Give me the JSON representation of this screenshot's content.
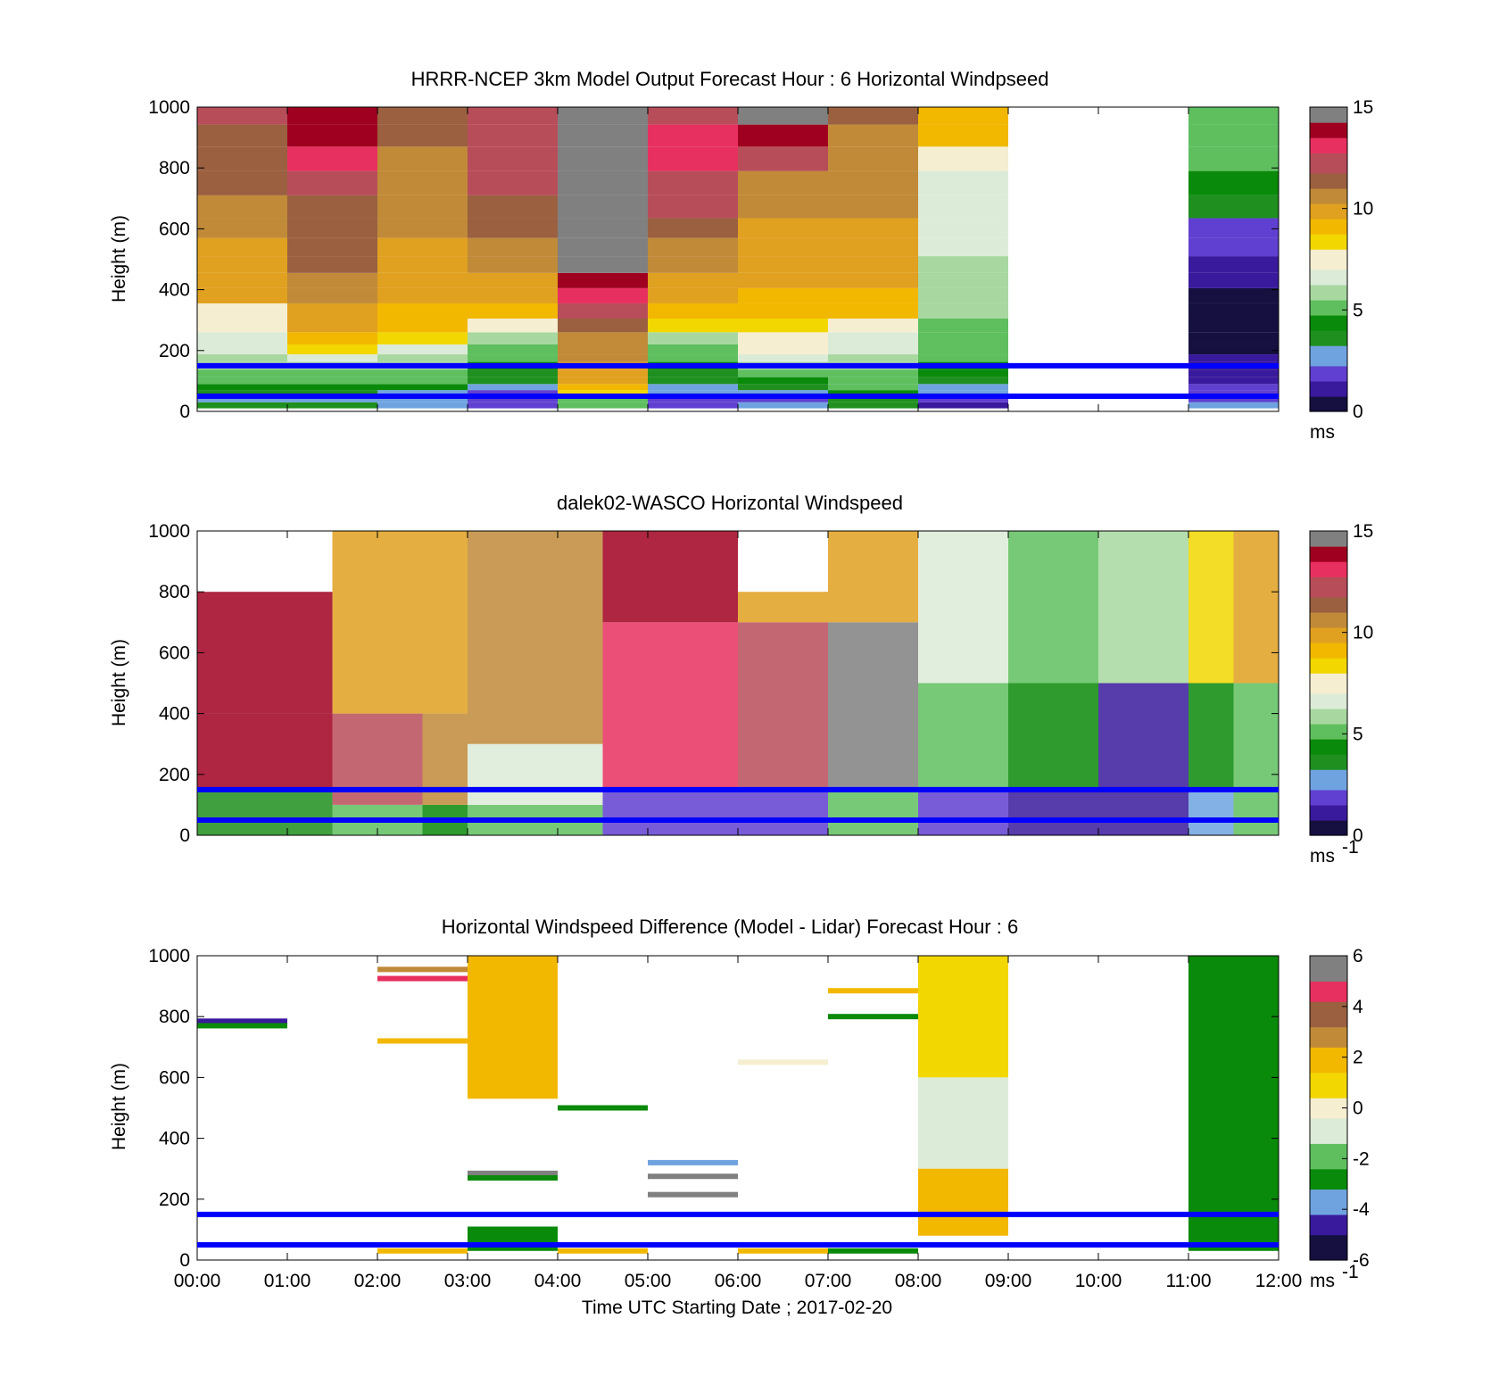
{
  "figure": {
    "xlabel": "Time UTC  Starting Date ; 2017-02-20",
    "ylabel": "Height (m)",
    "x_ticks": [
      "00:00",
      "01:00",
      "02:00",
      "03:00",
      "04:00",
      "05:00",
      "06:00",
      "07:00",
      "08:00",
      "09:00",
      "10:00",
      "11:00",
      "12:00"
    ]
  },
  "colors": {
    "reference_line": "#0000ff",
    "missing": "#ffffff",
    "speed_colormap": [
      "#151040",
      "#3a1a9c",
      "#6040d0",
      "#6fa3e0",
      "#1f8f1f",
      "#0a8a0a",
      "#5fbf5f",
      "#a8d8a0",
      "#dcebd8",
      "#f5eed0",
      "#f2d700",
      "#f2b800",
      "#e0a020",
      "#c08a38",
      "#9a6040",
      "#b84d5a",
      "#e83060",
      "#a00020",
      "#808080"
    ],
    "diff_colormap": [
      "#151040",
      "#3a1a9c",
      "#6fa3e0",
      "#0a8a0a",
      "#5fbf5f",
      "#dcebd8",
      "#f5eed0",
      "#f2d700",
      "#f2b800",
      "#c08a38",
      "#9a6040",
      "#e83060",
      "#808080"
    ]
  },
  "chart_data": [
    {
      "type": "heatmap",
      "title": "HRRR-NCEP 3km Model Output   Forecast Hour : 6 Horizontal Windpseed",
      "xlabel": "",
      "ylabel": "Height (m)",
      "xlim": [
        0,
        12
      ],
      "ylim": [
        0,
        1000
      ],
      "y_ticks": [
        0,
        200,
        400,
        600,
        800,
        1000
      ],
      "colorbar": {
        "min": 0,
        "max": 15,
        "ticks": [
          0,
          5,
          10,
          15
        ],
        "unit": "ms"
      },
      "reference_lines_m": [
        50,
        150
      ],
      "grid": false,
      "columns": [
        {
          "time_start": "00:00",
          "heights_m": [
            20,
            40,
            60,
            80,
            100,
            125,
            150,
            175,
            200,
            240,
            280,
            330,
            380,
            430,
            480,
            540,
            600,
            670,
            750,
            830,
            910,
            975
          ],
          "values": [
            3.2,
            3.0,
            3.6,
            4.4,
            5.0,
            5.2,
            5.6,
            5.8,
            6.5,
            6.8,
            7.2,
            7.8,
            9.5,
            9.8,
            10.0,
            10.2,
            10.6,
            11.0,
            11.5,
            11.6,
            11.8,
            12.0
          ]
        },
        {
          "time_start": "01:00",
          "heights_m": [
            20,
            40,
            60,
            80,
            100,
            125,
            150,
            175,
            200,
            240,
            280,
            330,
            380,
            430,
            480,
            540,
            600,
            670,
            750,
            830,
            910,
            975
          ],
          "values": [
            3.2,
            3.0,
            3.5,
            4.5,
            5.1,
            5.5,
            6.2,
            7.0,
            8.2,
            9.3,
            9.5,
            9.8,
            10.3,
            11.0,
            11.4,
            11.6,
            11.6,
            11.8,
            12.0,
            12.8,
            13.5,
            13.8
          ]
        },
        {
          "time_start": "02:00",
          "heights_m": [
            20,
            40,
            60,
            80,
            100,
            125,
            150,
            175,
            200,
            240,
            280,
            330,
            380,
            430,
            480,
            540,
            600,
            670,
            750,
            830,
            910,
            975
          ],
          "values": [
            2.8,
            2.6,
            3.0,
            4.6,
            5.0,
            5.2,
            5.6,
            6.3,
            7.0,
            8.0,
            9.0,
            9.4,
            9.6,
            9.8,
            10.0,
            10.2,
            10.4,
            10.6,
            10.8,
            11.0,
            11.2,
            11.4
          ]
        },
        {
          "time_start": "03:00",
          "heights_m": [
            20,
            40,
            60,
            80,
            100,
            125,
            150,
            175,
            200,
            240,
            280,
            330,
            380,
            430,
            480,
            540,
            600,
            670,
            750,
            830,
            910,
            975
          ],
          "values": [
            2.0,
            1.8,
            2.2,
            2.6,
            3.2,
            3.8,
            4.6,
            5.0,
            5.2,
            5.8,
            7.4,
            9.0,
            9.5,
            10.0,
            10.6,
            11.0,
            11.4,
            11.8,
            12.0,
            12.1,
            12.2,
            12.3
          ]
        },
        {
          "time_start": "04:00",
          "heights_m": [
            20,
            40,
            60,
            80,
            100,
            125,
            150,
            175,
            200,
            240,
            280,
            330,
            380,
            430,
            480,
            540,
            600,
            670,
            750,
            830,
            910,
            975
          ],
          "values": [
            5.0,
            4.8,
            8.0,
            9.4,
            9.6,
            9.8,
            10.0,
            10.4,
            10.6,
            11.0,
            11.6,
            12.4,
            13.0,
            14.0,
            14.6,
            14.6,
            14.4,
            14.6,
            14.8,
            16.0,
            16.0,
            16.0
          ]
        },
        {
          "time_start": "05:00",
          "heights_m": [
            20,
            40,
            60,
            80,
            100,
            125,
            150,
            175,
            200,
            240,
            280,
            330,
            380,
            430,
            480,
            540,
            600,
            670,
            750,
            830,
            910,
            975
          ],
          "values": [
            2.0,
            1.8,
            2.4,
            3.0,
            3.4,
            3.8,
            4.4,
            5.0,
            5.4,
            6.0,
            8.2,
            9.2,
            9.6,
            10.0,
            10.6,
            11.0,
            11.6,
            12.0,
            12.4,
            13.0,
            13.4,
            12.2
          ]
        },
        {
          "time_start": "06:00",
          "heights_m": [
            20,
            40,
            60,
            80,
            100,
            125,
            150,
            175,
            200,
            240,
            280,
            330,
            380,
            430,
            480,
            540,
            600,
            670,
            750,
            830,
            910,
            975
          ],
          "values": [
            2.4,
            2.2,
            2.8,
            3.6,
            4.6,
            5.0,
            5.6,
            6.6,
            7.2,
            7.8,
            8.4,
            9.0,
            9.4,
            9.6,
            9.8,
            10.0,
            10.2,
            10.6,
            11.0,
            12.0,
            14.0,
            14.5
          ]
        },
        {
          "time_start": "07:00",
          "heights_m": [
            20,
            40,
            60,
            80,
            100,
            125,
            150,
            175,
            200,
            240,
            280,
            330,
            380,
            430,
            480,
            540,
            600,
            670,
            750,
            830,
            910,
            975
          ],
          "values": [
            3.2,
            3.6,
            4.6,
            5.0,
            5.2,
            5.4,
            5.6,
            6.0,
            6.4,
            6.8,
            7.6,
            8.8,
            9.4,
            9.6,
            9.8,
            10.0,
            10.2,
            10.4,
            10.6,
            10.8,
            11.0,
            11.2
          ]
        },
        {
          "time_start": "08:00",
          "heights_m": [
            20,
            40,
            60,
            80,
            100,
            125,
            150,
            175,
            200,
            240,
            280,
            330,
            380,
            430,
            480,
            540,
            600,
            670,
            750,
            830,
            910,
            975
          ],
          "values": [
            1.0,
            1.6,
            2.4,
            3.0,
            3.4,
            4.0,
            4.6,
            4.8,
            5.0,
            5.2,
            5.4,
            5.6,
            5.8,
            6.0,
            6.2,
            6.4,
            6.6,
            6.8,
            7.0,
            7.6,
            9.0,
            9.2
          ]
        },
        {
          "time_start": "11:00",
          "heights_m": [
            20,
            40,
            60,
            80,
            100,
            125,
            150,
            175,
            200,
            240,
            280,
            330,
            380,
            430,
            480,
            540,
            600,
            670,
            750,
            830,
            910,
            975
          ],
          "values": [
            2.4,
            2.0,
            1.8,
            1.6,
            1.4,
            1.2,
            1.0,
            0.8,
            0.6,
            0.5,
            0.4,
            0.4,
            0.6,
            1.0,
            1.4,
            1.8,
            2.2,
            3.6,
            4.6,
            4.8,
            5.0,
            5.2
          ]
        }
      ]
    },
    {
      "type": "heatmap",
      "title": "dalek02-WASCO  Horizontal Windspeed",
      "xlabel": "",
      "ylabel": "Height (m)",
      "xlim": [
        0,
        12
      ],
      "ylim": [
        0,
        1000
      ],
      "y_ticks": [
        0,
        200,
        400,
        600,
        800,
        1000
      ],
      "colorbar": {
        "min": 0,
        "max": 15,
        "ticks": [
          0,
          5,
          10,
          15
        ],
        "unit": "ms",
        "unit_exponent": "-1"
      },
      "reference_lines_m": [
        50,
        150
      ],
      "grid": false,
      "columns": [
        {
          "time_start": "00:00",
          "values_by_height": {
            "0-150": 3.2,
            "150-400": 14.0,
            "400-800": 14.0
          }
        },
        {
          "time_start": "01:30",
          "values_by_height": {
            "0-100": 4.8,
            "100-400": 12.0,
            "400-1000": 10.0
          }
        },
        {
          "time_start": "02:30",
          "values_by_height": {
            "0-100": 4.6,
            "100-400": 11.0,
            "400-1000": 10.0
          }
        },
        {
          "time_start": "03:00",
          "values_by_height": {
            "0-100": 4.8,
            "100-300": 6.8,
            "300-1000": 10.6
          }
        },
        {
          "time_start": "04:30",
          "values_by_height": {
            "0-150": 2.0,
            "150-700": 13.0,
            "700-1000": 13.5
          }
        },
        {
          "time_start": "06:00",
          "values_by_height": {
            "0-150": 1.6,
            "150-700": 12.0,
            "700-800": 9.6
          }
        },
        {
          "time_start": "07:00",
          "values_by_height": {
            "0-150": 4.8,
            "150-700": 14.5,
            "700-1000": 9.8
          }
        },
        {
          "time_start": "08:00",
          "values_by_height": {
            "0-150": 2.0,
            "150-500": 5.0,
            "500-1000": 7.0
          }
        },
        {
          "time_start": "09:00",
          "values_by_height": {
            "0-150": 1.0,
            "150-500": 4.6,
            "500-1000": 5.0
          }
        },
        {
          "time_start": "10:00",
          "values_by_height": {
            "0-150": 1.2,
            "150-500": 1.4,
            "500-1000": 6.0
          }
        },
        {
          "time_start": "11:00",
          "values_by_height": {
            "0-150": 2.4,
            "150-500": 4.6,
            "500-1000": 8.0
          }
        },
        {
          "time_start": "11:30",
          "values_by_height": {
            "0-150": 5.0,
            "150-500": 5.4,
            "500-1000": 9.6
          }
        }
      ]
    },
    {
      "type": "heatmap",
      "title": "Horizontal Windspeed Difference (Model - Lidar) Forecast Hour : 6",
      "xlabel": "Time UTC  Starting Date ; 2017-02-20",
      "ylabel": "Height (m)",
      "xlim": [
        0,
        12
      ],
      "ylim": [
        0,
        1000
      ],
      "y_ticks": [
        0,
        200,
        400,
        600,
        800,
        1000
      ],
      "colorbar": {
        "min": -6,
        "max": 6,
        "ticks": [
          -6,
          -4,
          -2,
          0,
          2,
          4,
          6
        ],
        "unit": "ms",
        "unit_exponent": "-1"
      },
      "reference_lines_m": [
        50,
        150
      ],
      "grid": false,
      "blocks": [
        {
          "time_start": "03:00",
          "time_end": "04:00",
          "height_m": [
            530,
            1000
          ],
          "value": 2.0
        },
        {
          "time_start": "03:00",
          "time_end": "04:00",
          "height_m": [
            30,
            110
          ],
          "value": -3.0
        },
        {
          "time_start": "08:00",
          "time_end": "09:00",
          "height_m": [
            600,
            1000
          ],
          "value": 1.0
        },
        {
          "time_start": "08:00",
          "time_end": "09:00",
          "height_m": [
            300,
            600
          ],
          "value": -1.0
        },
        {
          "time_start": "08:00",
          "time_end": "09:00",
          "height_m": [
            80,
            300
          ],
          "value": 2.0
        },
        {
          "time_start": "11:00",
          "time_end": "12:00",
          "height_m": [
            30,
            1000
          ],
          "value": -3.0
        }
      ],
      "lines": [
        {
          "time_start": "00:00",
          "time_end": "01:00",
          "height_m": 785,
          "value": -5.0
        },
        {
          "time_start": "00:00",
          "time_end": "01:00",
          "height_m": 770,
          "value": -3.0
        },
        {
          "time_start": "02:00",
          "time_end": "03:00",
          "height_m": 955,
          "value": 3.0
        },
        {
          "time_start": "02:00",
          "time_end": "03:00",
          "height_m": 925,
          "value": 5.0
        },
        {
          "time_start": "02:00",
          "time_end": "03:00",
          "height_m": 720,
          "value": 2.0
        },
        {
          "time_start": "03:00",
          "time_end": "04:00",
          "height_m": 285,
          "value": 7.0
        },
        {
          "time_start": "03:00",
          "time_end": "04:00",
          "height_m": 270,
          "value": -3.0
        },
        {
          "time_start": "04:00",
          "time_end": "05:00",
          "height_m": 500,
          "value": -3.0
        },
        {
          "time_start": "05:00",
          "time_end": "06:00",
          "height_m": 320,
          "value": -4.0
        },
        {
          "time_start": "05:00",
          "time_end": "06:00",
          "height_m": 275,
          "value": 7.0
        },
        {
          "time_start": "05:00",
          "time_end": "06:00",
          "height_m": 215,
          "value": 7.0
        },
        {
          "time_start": "06:00",
          "time_end": "07:00",
          "height_m": 650,
          "value": 0.4
        },
        {
          "time_start": "07:00",
          "time_end": "08:00",
          "height_m": 885,
          "value": 2.0
        },
        {
          "time_start": "07:00",
          "time_end": "08:00",
          "height_m": 800,
          "value": -3.0
        },
        {
          "time_start": "02:00",
          "time_end": "03:00",
          "height_m": 30,
          "value": 2.0
        },
        {
          "time_start": "04:00",
          "time_end": "05:00",
          "height_m": 30,
          "value": 2.0
        },
        {
          "time_start": "06:00",
          "time_end": "07:00",
          "height_m": 30,
          "value": 2.0
        },
        {
          "time_start": "07:00",
          "time_end": "08:00",
          "height_m": 30,
          "value": -3.0
        }
      ]
    }
  ]
}
